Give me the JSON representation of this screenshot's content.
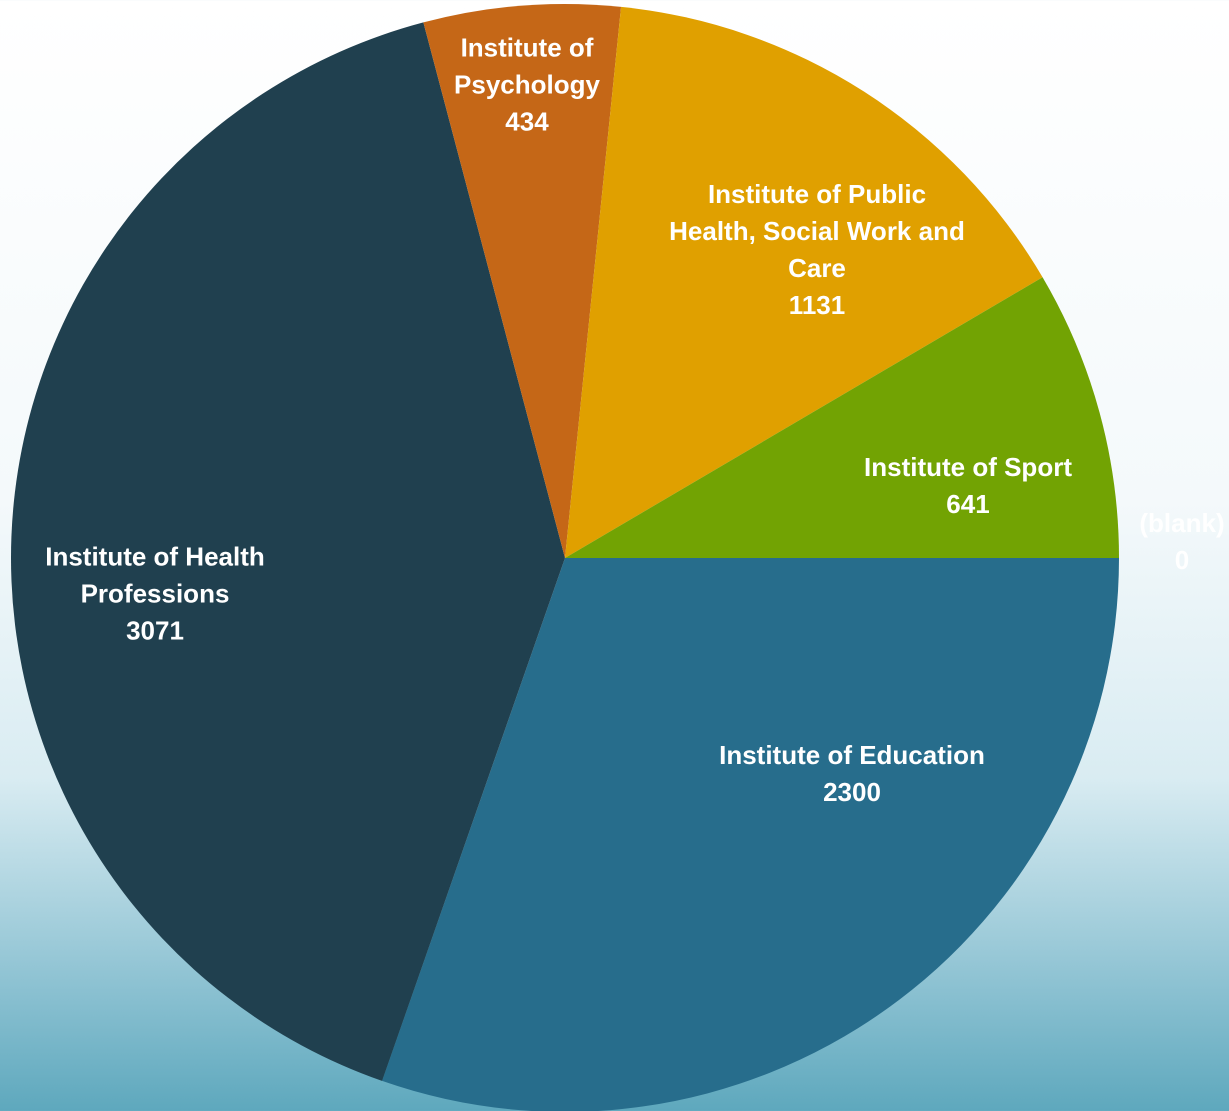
{
  "chart_data": {
    "type": "pie",
    "categories": [
      "Institute of Education",
      "Institute of Health Professions",
      "Institute of Psychology",
      "Institute of Public Health, Social Work and Care",
      "Institute of Sport",
      "(blank)"
    ],
    "values": [
      2300,
      3071,
      434,
      1131,
      641,
      0
    ],
    "colors": [
      "#276d8c",
      "#20404f",
      "#c56717",
      "#e0a000",
      "#72a303",
      "#4f81bd"
    ]
  }
}
